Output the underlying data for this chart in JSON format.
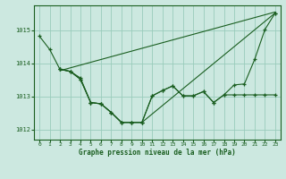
{
  "xlabel": "Graphe pression niveau de la mer (hPa)",
  "bg_color": "#cce8e0",
  "grid_color": "#99ccbb",
  "line_color": "#1a5e20",
  "ylim": [
    1011.7,
    1015.75
  ],
  "xlim": [
    -0.5,
    23.5
  ],
  "yticks": [
    1012,
    1013,
    1014,
    1015
  ],
  "xticks": [
    0,
    1,
    2,
    3,
    4,
    5,
    6,
    7,
    8,
    9,
    10,
    11,
    12,
    13,
    14,
    15,
    16,
    17,
    18,
    19,
    20,
    21,
    22,
    23
  ],
  "line1_x": [
    0,
    1,
    2,
    3,
    4,
    5,
    6,
    7,
    8,
    9,
    10,
    23
  ],
  "line1_y": [
    1014.82,
    1014.42,
    1013.82,
    1013.76,
    1013.56,
    1012.82,
    1012.78,
    1012.52,
    1012.22,
    1012.22,
    1012.22,
    1015.52
  ],
  "line2_x": [
    2,
    3,
    4,
    5,
    6,
    7,
    8,
    9,
    10,
    11,
    12,
    13,
    14,
    15,
    16,
    17,
    18,
    19,
    20,
    21,
    22,
    23
  ],
  "line2_y": [
    1013.82,
    1013.76,
    1013.52,
    1012.82,
    1012.78,
    1012.52,
    1012.22,
    1012.22,
    1012.22,
    1013.02,
    1013.18,
    1013.32,
    1013.02,
    1013.02,
    1013.15,
    1012.82,
    1013.05,
    1013.05,
    1013.05,
    1013.05,
    1013.05,
    1013.05
  ],
  "line3_x": [
    2,
    3,
    4,
    5,
    6,
    7,
    8,
    9,
    10,
    11,
    12,
    13,
    14,
    15,
    16,
    17,
    18,
    19,
    20,
    21,
    22,
    23
  ],
  "line3_y": [
    1013.82,
    1013.76,
    1013.52,
    1012.82,
    1012.78,
    1012.52,
    1012.22,
    1012.22,
    1012.22,
    1013.02,
    1013.18,
    1013.32,
    1013.02,
    1013.02,
    1013.15,
    1012.82,
    1013.05,
    1013.35,
    1013.38,
    1014.12,
    1015.02,
    1015.52
  ],
  "line4_x": [
    2,
    23
  ],
  "line4_y": [
    1013.78,
    1015.55
  ]
}
